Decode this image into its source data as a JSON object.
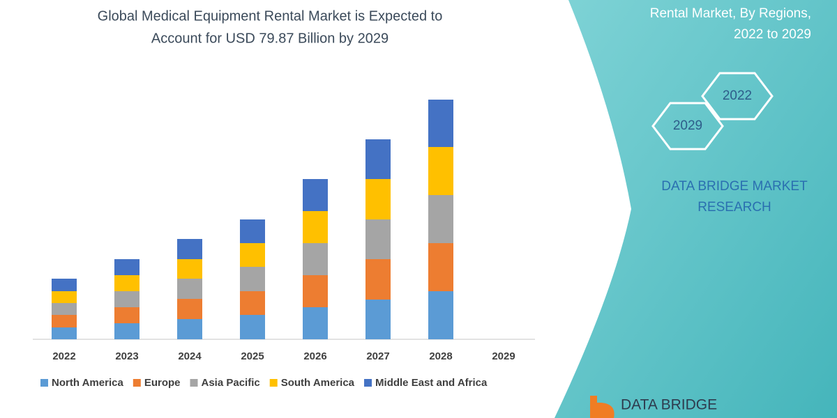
{
  "chart_data": {
    "type": "stacked_bar",
    "title": [
      "Global Medical Equipment Rental Market is Expected to",
      "Account for USD 79.87 Billion by 2029"
    ],
    "categories": [
      "2022",
      "2023",
      "2024",
      "2025",
      "2026",
      "2027",
      "2028",
      "2029"
    ],
    "series": [
      {
        "name": "North America",
        "color": "#5b9bd5",
        "values": [
          17,
          23,
          29,
          35,
          46,
          57,
          69,
          null
        ]
      },
      {
        "name": "Europe",
        "color": "#ed7d31",
        "values": [
          18,
          23,
          29,
          34,
          46,
          58,
          69,
          null
        ]
      },
      {
        "name": "Asia Pacific",
        "color": "#a5a5a5",
        "values": [
          17,
          23,
          29,
          35,
          46,
          57,
          69,
          null
        ]
      },
      {
        "name": "South America",
        "color": "#ffc000",
        "values": [
          17,
          23,
          28,
          34,
          46,
          58,
          69,
          null
        ]
      },
      {
        "name": "Middle East and Africa",
        "color": "#4472c4",
        "values": [
          18,
          23,
          29,
          34,
          46,
          57,
          68,
          null
        ]
      }
    ]
  },
  "panel": {
    "heading": [
      "Rental Market, By Regions,",
      "2022 to 2029"
    ],
    "hexagons": [
      "2022",
      "2029"
    ],
    "brand": [
      "DATA BRIDGE MARKET",
      "RESEARCH"
    ],
    "logo": "DATA BRIDGE"
  }
}
